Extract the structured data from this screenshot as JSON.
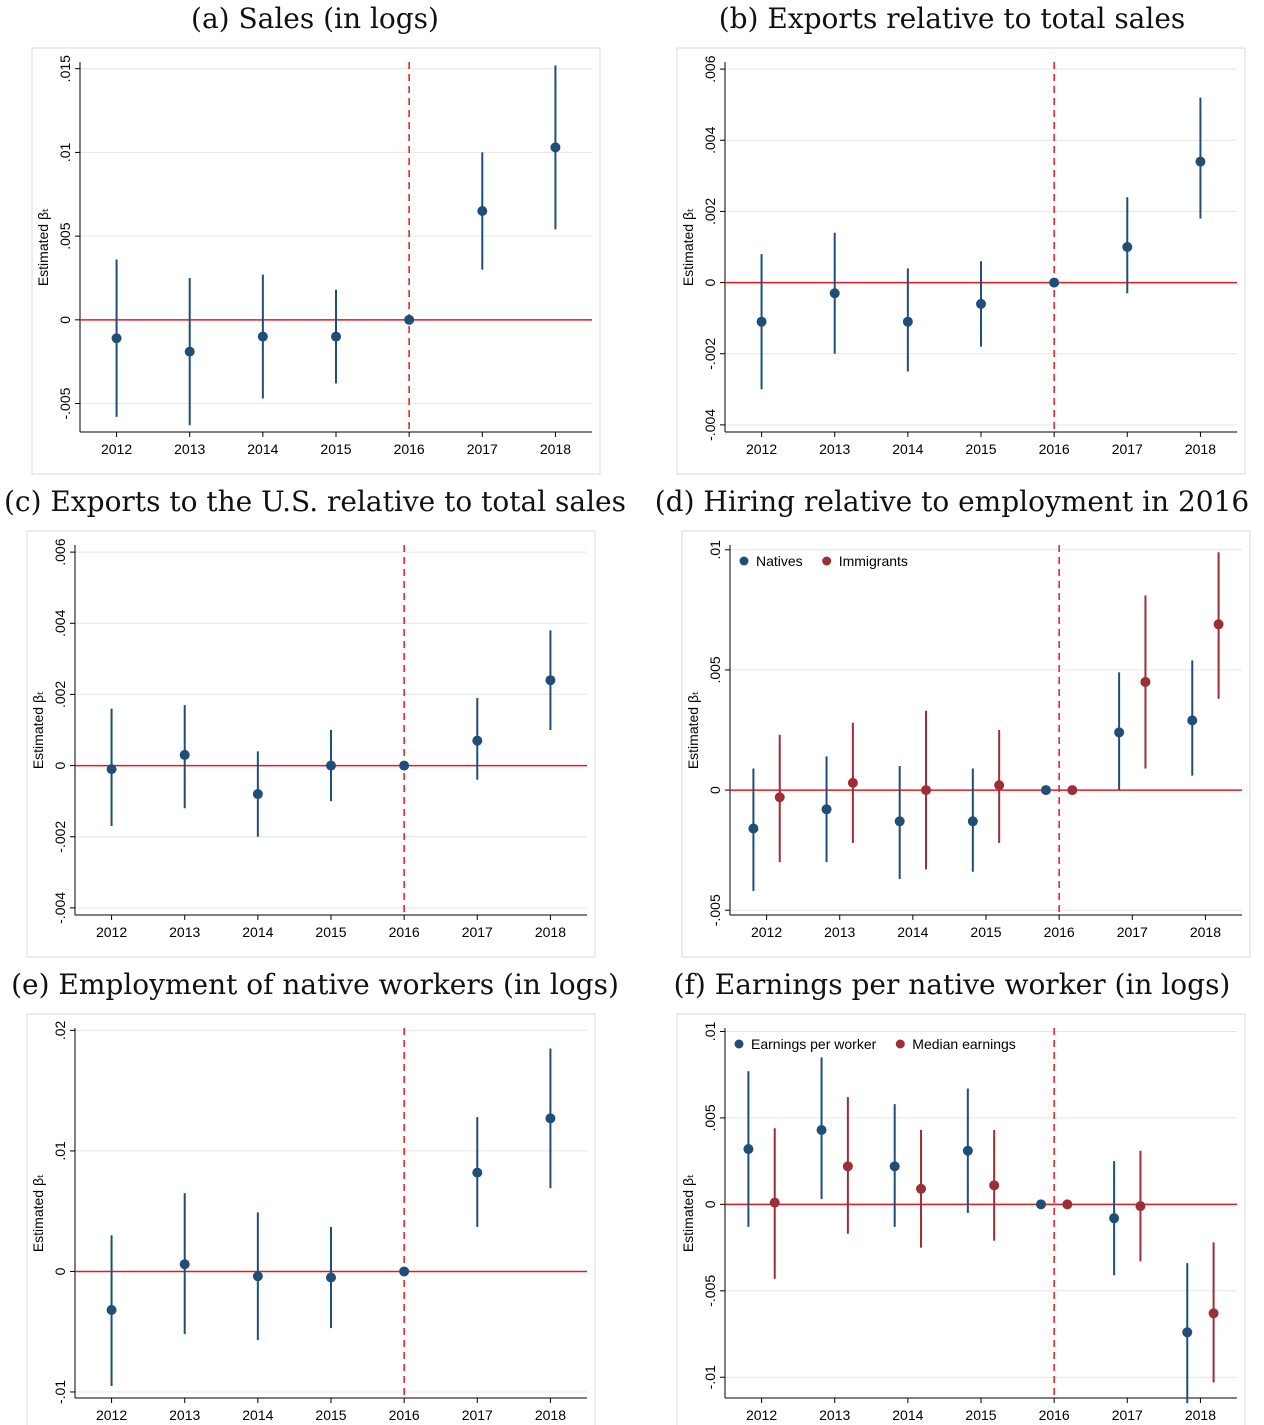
{
  "colors": {
    "natives": "#1f4e79",
    "immigrants": "#9b2f35",
    "refline": "#e8191e",
    "frame": "#d9d9d9"
  },
  "chart_data": [
    {
      "id": "a",
      "type": "scatter",
      "title": "(a) Sales (in logs)",
      "ylabel": "Estimated βₜ",
      "x": [
        2012,
        2013,
        2014,
        2015,
        2016,
        2017,
        2018
      ],
      "ylim": [
        -0.0067,
        0.0154
      ],
      "yticks": [
        -0.005,
        0,
        0.005,
        0.01,
        0.015
      ],
      "ytick_labels": [
        "-.005",
        "0",
        ".005",
        ".01",
        ".015"
      ],
      "event_year": 2016,
      "series": [
        {
          "y": [
            -0.0011,
            -0.0019,
            -0.001,
            -0.001,
            0.0,
            0.0065,
            0.0103
          ],
          "ci_low": [
            -0.0058,
            -0.0063,
            -0.0047,
            -0.0038,
            0.0,
            0.003,
            0.0054
          ],
          "ci_high": [
            0.0036,
            0.0025,
            0.0027,
            0.0018,
            0.0,
            0.01,
            0.0152
          ]
        }
      ]
    },
    {
      "id": "b",
      "type": "scatter",
      "title": "(b) Exports relative to total sales",
      "ylabel": "Estimated βₜ",
      "x": [
        2012,
        2013,
        2014,
        2015,
        2016,
        2017,
        2018
      ],
      "ylim": [
        -0.0042,
        0.0062
      ],
      "yticks": [
        -0.004,
        -0.002,
        0,
        0.002,
        0.004,
        0.006
      ],
      "ytick_labels": [
        "-.004",
        "-.002",
        "0",
        ".002",
        ".004",
        ".006"
      ],
      "event_year": 2016,
      "series": [
        {
          "y": [
            -0.0011,
            -0.0003,
            -0.0011,
            -0.0006,
            0.0,
            0.001,
            0.0034
          ],
          "ci_low": [
            -0.003,
            -0.002,
            -0.0025,
            -0.0018,
            0.0,
            -0.0003,
            0.0018
          ],
          "ci_high": [
            0.0008,
            0.0014,
            0.0004,
            0.0006,
            0.0,
            0.0024,
            0.0052
          ]
        }
      ]
    },
    {
      "id": "c",
      "type": "scatter",
      "title": "(c) Exports to the U.S. relative to total sales",
      "ylabel": "Estimated βₜ",
      "x": [
        2012,
        2013,
        2014,
        2015,
        2016,
        2017,
        2018
      ],
      "ylim": [
        -0.0042,
        0.0062
      ],
      "yticks": [
        -0.004,
        -0.002,
        0,
        0.002,
        0.004,
        0.006
      ],
      "ytick_labels": [
        "-.004",
        "-.002",
        "0",
        ".002",
        ".004",
        ".006"
      ],
      "event_year": 2016,
      "series": [
        {
          "y": [
            -0.0001,
            0.0003,
            -0.0008,
            0.0,
            0.0,
            0.0007,
            0.0024
          ],
          "ci_low": [
            -0.0017,
            -0.0012,
            -0.002,
            -0.001,
            0.0,
            -0.0004,
            0.001
          ],
          "ci_high": [
            0.0016,
            0.0017,
            0.0004,
            0.001,
            0.0,
            0.0019,
            0.0038
          ]
        }
      ]
    },
    {
      "id": "d",
      "type": "scatter",
      "title": "(d) Hiring relative to employment in 2016",
      "ylabel": "Estimated βₜ",
      "x": [
        2012,
        2013,
        2014,
        2015,
        2016,
        2017,
        2018
      ],
      "ylim": [
        -0.0052,
        0.0102
      ],
      "yticks": [
        -0.005,
        0,
        0.005,
        0.01
      ],
      "ytick_labels": [
        "-.005",
        "0",
        ".005",
        ".01"
      ],
      "event_year": 2016,
      "offset": 0.18,
      "legend": [
        "Natives",
        "Immigrants"
      ],
      "series": [
        {
          "name": "Natives",
          "color_key": "natives",
          "y": [
            -0.0016,
            -0.0008,
            -0.0013,
            -0.0013,
            0.0,
            0.0024,
            0.0029
          ],
          "ci_low": [
            -0.0042,
            -0.003,
            -0.0037,
            -0.0034,
            0.0,
            0.0,
            0.0006
          ],
          "ci_high": [
            0.0009,
            0.0014,
            0.001,
            0.0009,
            0.0,
            0.0049,
            0.0054
          ]
        },
        {
          "name": "Immigrants",
          "color_key": "immigrants",
          "y": [
            -0.0003,
            0.0003,
            0.0,
            0.0002,
            0.0,
            0.0045,
            0.0069
          ],
          "ci_low": [
            -0.003,
            -0.0022,
            -0.0033,
            -0.0022,
            0.0,
            0.0009,
            0.0038
          ],
          "ci_high": [
            0.0023,
            0.0028,
            0.0033,
            0.0025,
            0.0,
            0.0081,
            0.0099
          ]
        }
      ]
    },
    {
      "id": "e",
      "type": "scatter",
      "title": "(e) Employment of native workers (in logs)",
      "ylabel": "Estimated βₜ",
      "x": [
        2012,
        2013,
        2014,
        2015,
        2016,
        2017,
        2018
      ],
      "ylim": [
        -0.0105,
        0.0202
      ],
      "yticks": [
        -0.01,
        0,
        0.01,
        0.02
      ],
      "ytick_labels": [
        "-.01",
        "0",
        ".01",
        ".02"
      ],
      "event_year": 2016,
      "series": [
        {
          "y": [
            -0.0032,
            0.0006,
            -0.0004,
            -0.0005,
            0.0,
            0.0082,
            0.0127
          ],
          "ci_low": [
            -0.0095,
            -0.0052,
            -0.0057,
            -0.0047,
            0.0,
            0.0037,
            0.0069
          ],
          "ci_high": [
            0.003,
            0.0065,
            0.0049,
            0.0037,
            0.0,
            0.0128,
            0.0185
          ]
        }
      ]
    },
    {
      "id": "f",
      "type": "scatter",
      "title": "(f) Earnings per native worker (in logs)",
      "ylabel": "Estimated βₜ",
      "x": [
        2012,
        2013,
        2014,
        2015,
        2016,
        2017,
        2018
      ],
      "ylim": [
        -0.0112,
        0.0102
      ],
      "yticks": [
        -0.01,
        -0.005,
        0,
        0.005,
        0.01
      ],
      "ytick_labels": [
        "-.01",
        "-.005",
        "0",
        ".005",
        ".01"
      ],
      "event_year": 2016,
      "offset": 0.18,
      "legend": [
        "Earnings per worker",
        "Median earnings"
      ],
      "series": [
        {
          "name": "Earnings per worker",
          "color_key": "natives",
          "y": [
            0.0032,
            0.0043,
            0.0022,
            0.0031,
            0.0,
            -0.0008,
            -0.0074
          ],
          "ci_low": [
            -0.0013,
            0.0003,
            -0.0013,
            -0.0005,
            0.0,
            -0.0041,
            -0.0115
          ],
          "ci_high": [
            0.0077,
            0.0085,
            0.0058,
            0.0067,
            0.0,
            0.0025,
            -0.0034
          ]
        },
        {
          "name": "Median earnings",
          "color_key": "immigrants",
          "y": [
            0.0001,
            0.0022,
            0.0009,
            0.0011,
            0.0,
            -0.0001,
            -0.0063
          ],
          "ci_low": [
            -0.0043,
            -0.0017,
            -0.0025,
            -0.0021,
            0.0,
            -0.0033,
            -0.0103
          ],
          "ci_high": [
            0.0044,
            0.0062,
            0.0043,
            0.0043,
            0.0,
            0.0031,
            -0.0022
          ]
        }
      ]
    }
  ]
}
